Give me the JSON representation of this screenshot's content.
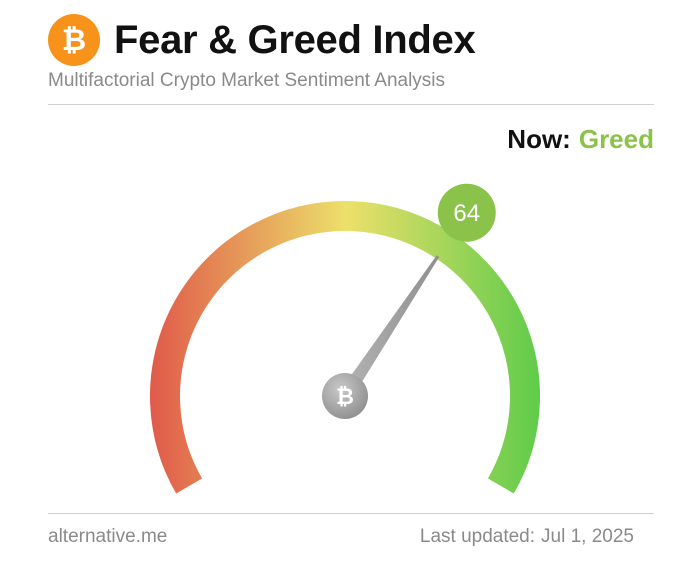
{
  "header": {
    "logo_glyph": "₿",
    "logo_icon": "bitcoin-icon",
    "title": "Fear & Greed Index",
    "subtitle": "Multifactorial Crypto Market Sentiment Analysis"
  },
  "status": {
    "now_label": "Now:",
    "state": "Greed",
    "state_color": "#8bc34a"
  },
  "gauge": {
    "value": 64,
    "value_label": "64",
    "min": 0,
    "max": 100,
    "badge_color": "#8bc34a",
    "hub_glyph": "₿",
    "hub_icon": "bitcoin-icon",
    "colors": {
      "fear": "#e05a4a",
      "neutral": "#ece06a",
      "greed": "#5ecb4a"
    }
  },
  "footer": {
    "source": "alternative.me",
    "updated_label": "Last updated:",
    "updated_date": "Jul 1, 2025"
  }
}
